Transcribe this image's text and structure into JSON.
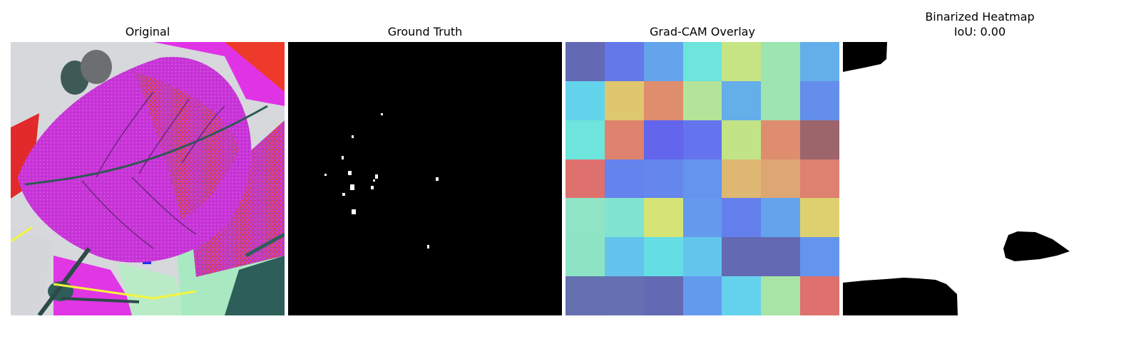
{
  "panels": {
    "original": {
      "title": "Original"
    },
    "ground_truth": {
      "title": "Ground Truth"
    },
    "gradcam": {
      "title": "Grad-CAM Overlay"
    },
    "binarized": {
      "title": "Binarized Heatmap",
      "subtitle": "IoU: 0.00"
    }
  },
  "gradcam_grid": [
    [
      "#6369b2",
      "#6378e9",
      "#64a4ec",
      "#6de4dc",
      "#c7e485",
      "#9de4b1",
      "#64aeea"
    ],
    [
      "#63d3ec",
      "#dec76e",
      "#de8d6d",
      "#b3e499",
      "#64aeea",
      "#9de4b1",
      "#648eec"
    ],
    [
      "#6de4dc",
      "#de826d",
      "#6365ec",
      "#6474ef",
      "#c2e486",
      "#de8e6f",
      "#9c646b"
    ],
    [
      "#de716d",
      "#6483ed",
      "#6486ed",
      "#6494ee",
      "#deb872",
      "#dea673",
      "#de8170"
    ],
    [
      "#8fe4c5",
      "#81e4d2",
      "#d6e475",
      "#6499ee",
      "#6480ed",
      "#64a4ed",
      "#ded06e"
    ],
    [
      "#8ce4c5",
      "#64c3ec",
      "#64dde4",
      "#64c5ec",
      "#6369b2",
      "#6369b2",
      "#6495ee"
    ],
    [
      "#646fb0",
      "#6470b1",
      "#6369b2",
      "#649aee",
      "#64d2ec",
      "#a7e4a6",
      "#de716d"
    ]
  ]
}
